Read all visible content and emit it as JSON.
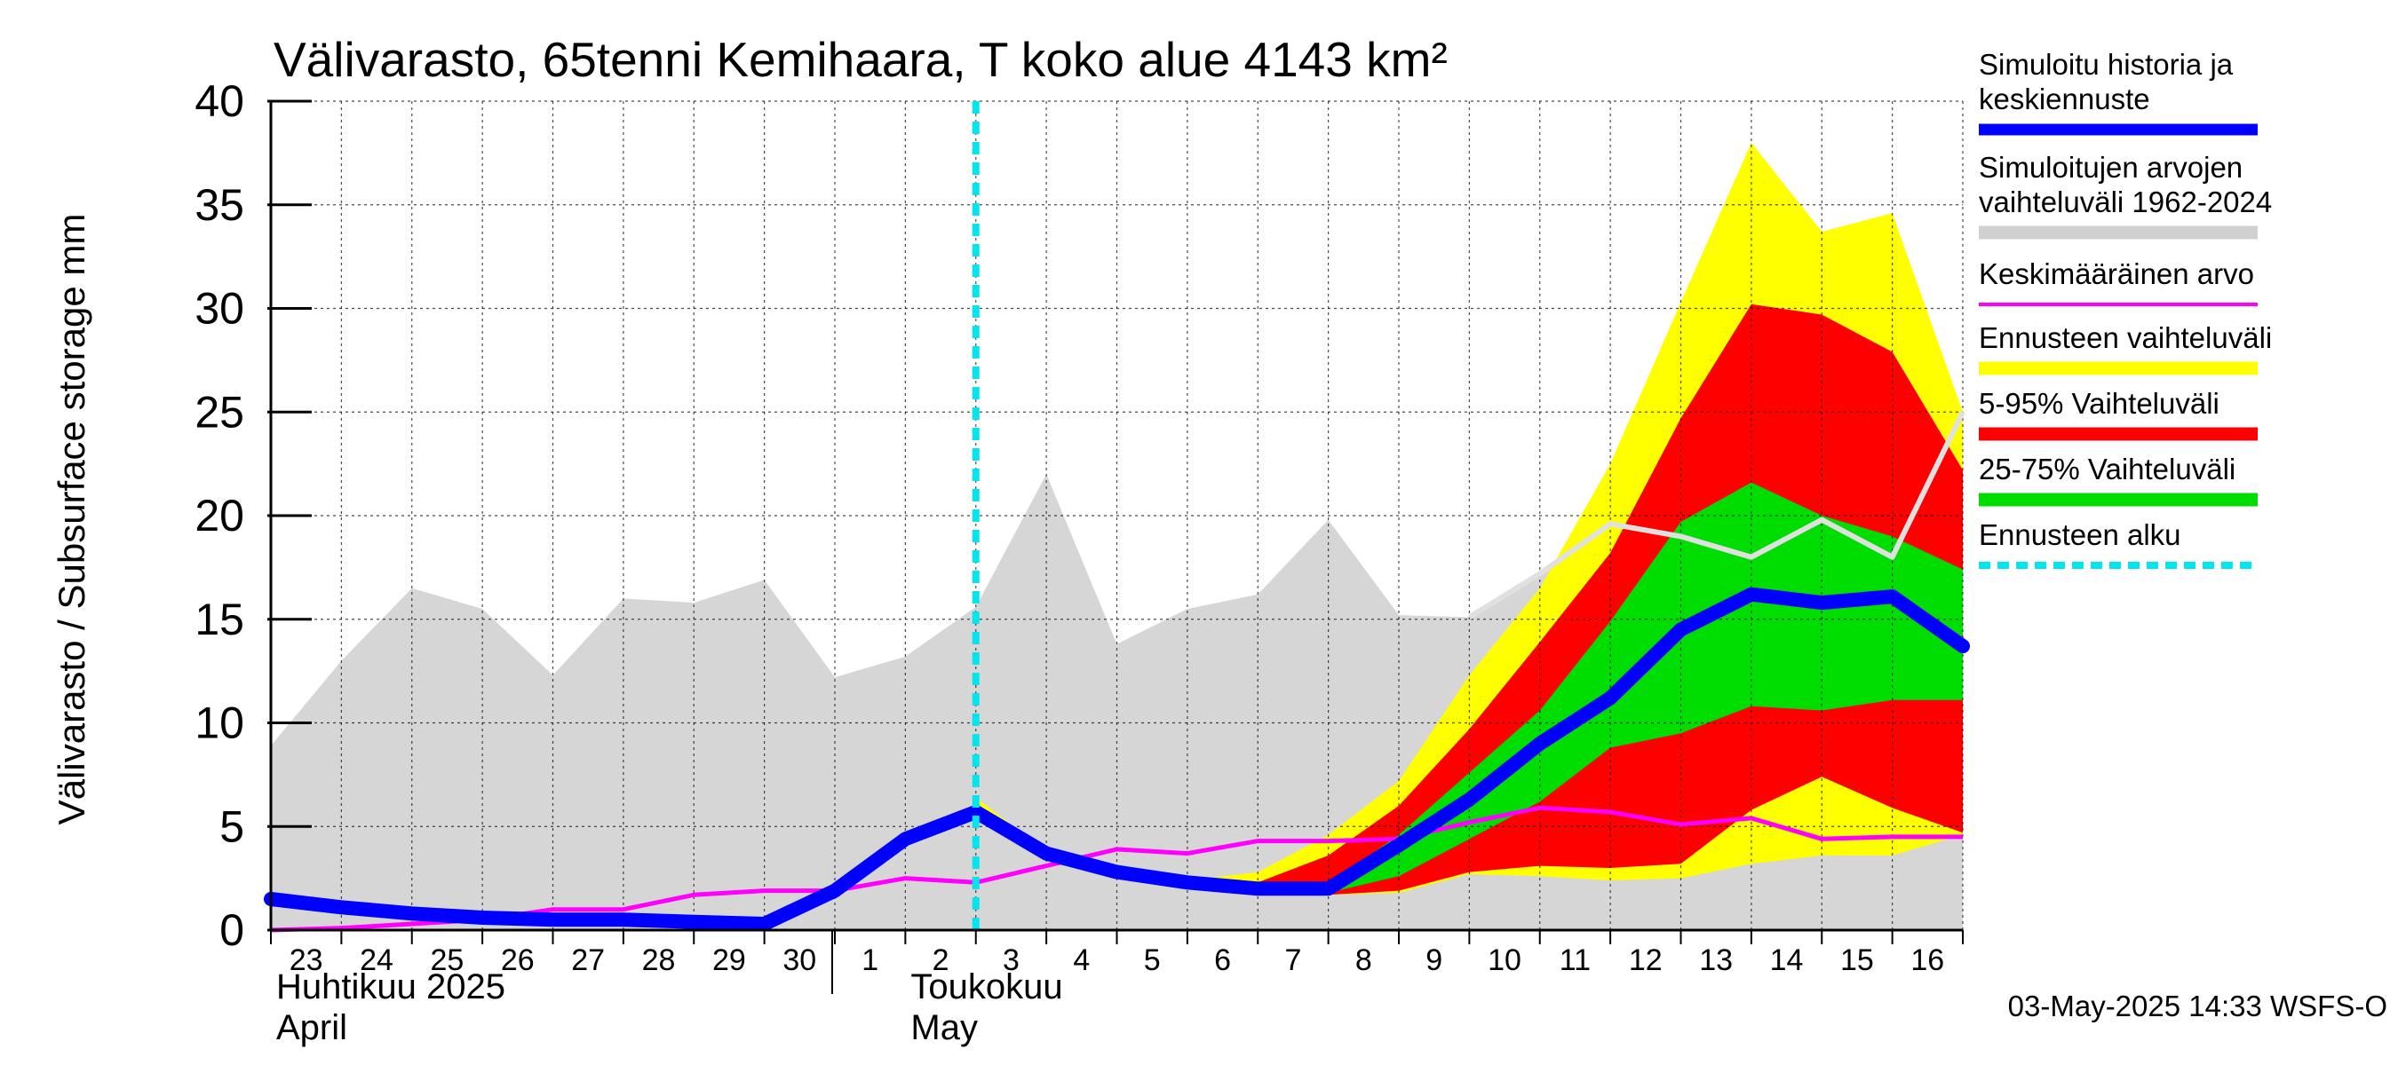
{
  "chart_data": {
    "type": "area",
    "title": "Välivarasto, 65tenni Kemihaara, T koko alue 4143 km²",
    "ylabel": "Välivarasto / Subsurface storage  mm",
    "xlabel": "",
    "ylim": [
      0,
      40
    ],
    "yticks": [
      0,
      5,
      10,
      15,
      20,
      25,
      30,
      35,
      40
    ],
    "grid": true,
    "legend_position": "right",
    "x_tick_labels": [
      "23",
      "24",
      "25",
      "26",
      "27",
      "28",
      "29",
      "30",
      "1",
      "2",
      "3",
      "4",
      "5",
      "6",
      "7",
      "8",
      "9",
      "10",
      "11",
      "12",
      "13",
      "14",
      "15",
      "16"
    ],
    "month_labels": [
      {
        "line1": "Huhtikuu  2025",
        "line2": "April",
        "at_day": 0
      },
      {
        "line1": "Toukokuu",
        "line2": "May",
        "at_day": 9
      }
    ],
    "forecast_start_day": 10,
    "x_days_note": "day index 0 = 23 April 2025",
    "history_range_1962_2024": {
      "days": [
        0,
        1,
        2,
        3,
        4,
        5,
        6,
        7,
        8,
        9,
        10,
        11,
        12,
        13,
        14,
        15,
        16,
        17,
        18,
        19,
        20,
        21,
        22,
        23,
        24
      ],
      "upper": [
        8.9,
        13.0,
        16.5,
        15.5,
        12.3,
        16.0,
        15.8,
        16.9,
        12.2,
        13.2,
        15.6,
        22.0,
        13.8,
        15.5,
        16.2,
        19.8,
        15.2,
        15.1,
        17.2,
        19.6,
        19.0,
        18.0,
        19.8,
        18.0,
        25.0
      ],
      "lower": [
        0,
        0,
        0,
        0,
        0,
        0,
        0,
        0,
        0,
        0,
        0,
        0,
        0,
        0,
        0,
        0,
        0,
        0,
        0,
        0,
        0,
        0,
        0,
        0,
        0
      ]
    },
    "forecast_range": {
      "days": [
        10,
        11,
        12,
        13,
        14,
        15,
        16,
        17,
        18,
        19,
        20,
        21,
        22,
        23,
        24
      ],
      "upper": [
        6.4,
        3.8,
        2.9,
        2.4,
        2.8,
        4.6,
        7.2,
        12.3,
        16.5,
        22.5,
        30.3,
        38.0,
        33.7,
        34.6,
        25.0
      ],
      "lower": [
        5.6,
        3.4,
        2.6,
        2.2,
        1.9,
        1.7,
        1.8,
        2.7,
        2.6,
        2.4,
        2.5,
        3.2,
        3.6,
        3.6,
        4.6
      ]
    },
    "p5_95_range": {
      "days": [
        10,
        11,
        12,
        13,
        14,
        15,
        16,
        17,
        18,
        19,
        20,
        21,
        22,
        23,
        24
      ],
      "upper": [
        6.1,
        3.7,
        2.8,
        2.3,
        2.3,
        3.6,
        6.0,
        9.7,
        13.9,
        18.2,
        24.7,
        30.2,
        29.7,
        27.9,
        22.2
      ],
      "lower": [
        5.7,
        3.5,
        2.7,
        2.2,
        1.9,
        1.7,
        1.9,
        2.8,
        3.1,
        3.0,
        3.2,
        5.8,
        7.4,
        5.9,
        4.7
      ]
    },
    "p25_75_range": {
      "days": [
        10,
        11,
        12,
        13,
        14,
        15,
        16,
        17,
        18,
        19,
        20,
        21,
        22,
        23,
        24
      ],
      "upper": [
        6.0,
        3.6,
        2.8,
        2.3,
        2.1,
        2.2,
        4.6,
        7.6,
        10.6,
        14.9,
        19.7,
        21.6,
        20.0,
        19.0,
        17.4
      ],
      "lower": [
        5.8,
        3.5,
        2.7,
        2.2,
        2.0,
        1.8,
        2.6,
        4.4,
        6.2,
        8.8,
        9.5,
        10.8,
        10.6,
        11.1,
        11.1
      ]
    },
    "series": [
      {
        "name": "Simuloitu historia ja keskiennuste",
        "color": "#0000ff",
        "x": [
          0,
          1,
          2,
          3,
          4,
          5,
          6,
          7,
          8,
          9,
          10,
          11,
          12,
          13,
          14,
          15,
          16,
          17,
          18,
          19,
          20,
          21,
          22,
          23,
          24
        ],
        "values": [
          1.5,
          1.1,
          0.8,
          0.6,
          0.5,
          0.5,
          0.4,
          0.3,
          1.9,
          4.4,
          5.7,
          3.7,
          2.8,
          2.3,
          2.0,
          2.0,
          4.1,
          6.3,
          9.0,
          11.2,
          14.5,
          16.2,
          15.8,
          16.1,
          13.7
        ]
      },
      {
        "name": "Keskimääräinen arvo",
        "color": "#ff00ff",
        "x": [
          0,
          1,
          2,
          3,
          4,
          5,
          6,
          7,
          8,
          9,
          10,
          11,
          12,
          13,
          14,
          15,
          16,
          17,
          18,
          19,
          20,
          21,
          22,
          23,
          24
        ],
        "values": [
          0.0,
          0.1,
          0.3,
          0.5,
          1.0,
          1.0,
          1.7,
          1.9,
          1.9,
          2.5,
          2.3,
          3.1,
          3.9,
          3.7,
          4.3,
          4.3,
          4.4,
          5.2,
          5.9,
          5.7,
          5.1,
          5.4,
          4.4,
          4.5,
          4.5
        ]
      },
      {
        "name": "history_upper_envelope_line",
        "color": "#e0e0e0",
        "x": [
          17,
          18,
          19,
          20,
          21,
          22,
          23,
          24
        ],
        "values": [
          15.1,
          17.2,
          19.6,
          19.0,
          18.0,
          19.8,
          18.0,
          25.0
        ]
      }
    ],
    "legend": [
      {
        "lines": [
          "Simuloitu historia ja",
          "keskiennuste"
        ],
        "color": "#0000ff",
        "style": "thick"
      },
      {
        "lines": [
          "Simuloitujen arvojen",
          "vaihteluväli 1962-2024"
        ],
        "color": "#d0d0d0",
        "style": "band"
      },
      {
        "lines": [
          "Keskimääräinen arvo"
        ],
        "color": "#ff00ff",
        "style": "thin"
      },
      {
        "lines": [
          "Ennusteen vaihteluväli"
        ],
        "color": "#ffff00",
        "style": "band"
      },
      {
        "lines": [
          "5-95% Vaihteluväli"
        ],
        "color": "#ff0000",
        "style": "band"
      },
      {
        "lines": [
          "25-75% Vaihteluväli"
        ],
        "color": "#00dd00",
        "style": "band"
      },
      {
        "lines": [
          "Ennusteen alku"
        ],
        "color": "#00e5ee",
        "style": "dashed"
      }
    ]
  },
  "footer": "03-May-2025 14:33 WSFS-O"
}
